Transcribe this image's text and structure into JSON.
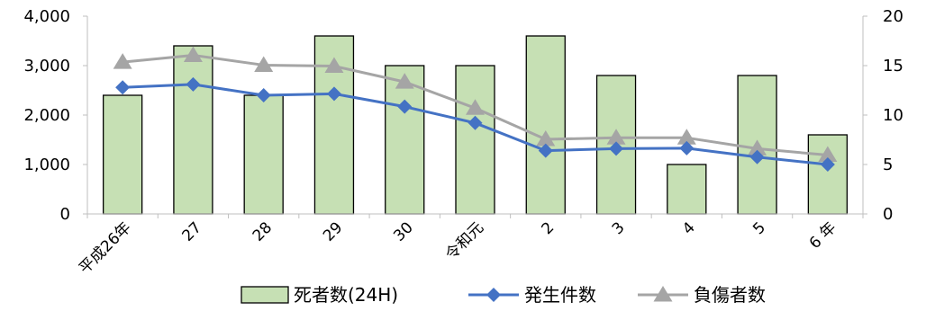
{
  "chart_data": {
    "type": "bar",
    "title": "",
    "categories": [
      "平成26年",
      "27",
      "28",
      "29",
      "30",
      "令和元",
      "2",
      "3",
      "4",
      "5",
      "6 年"
    ],
    "y_left": {
      "min": 0,
      "max": 4000,
      "ticks": [
        "0",
        "1,000",
        "2,000",
        "3,000",
        "4,000"
      ],
      "tick_values": [
        0,
        1000,
        2000,
        3000,
        4000
      ]
    },
    "y_right": {
      "min": 0,
      "max": 20,
      "ticks": [
        "0",
        "5",
        "10",
        "15",
        "20"
      ],
      "tick_values": [
        0,
        5,
        10,
        15,
        20
      ]
    },
    "series": [
      {
        "name": "死者数(24H)",
        "type": "bar",
        "axis": "right",
        "color": "#c6e0b4",
        "stroke": "#000000",
        "values": [
          12,
          17,
          12,
          18,
          15,
          15,
          18,
          14,
          5,
          14,
          8
        ]
      },
      {
        "name": "発生件数",
        "type": "line",
        "axis": "left",
        "color": "#4472c4",
        "marker": "diamond",
        "values": [
          2560,
          2620,
          2400,
          2430,
          2170,
          1840,
          1280,
          1320,
          1330,
          1150,
          1000
        ]
      },
      {
        "name": "負傷者数",
        "type": "line",
        "axis": "left",
        "color": "#a5a5a5",
        "marker": "triangle",
        "values": [
          3070,
          3210,
          3010,
          2990,
          2670,
          2140,
          1510,
          1540,
          1540,
          1320,
          1190
        ]
      }
    ],
    "grid": false,
    "legend_position": "bottom"
  }
}
